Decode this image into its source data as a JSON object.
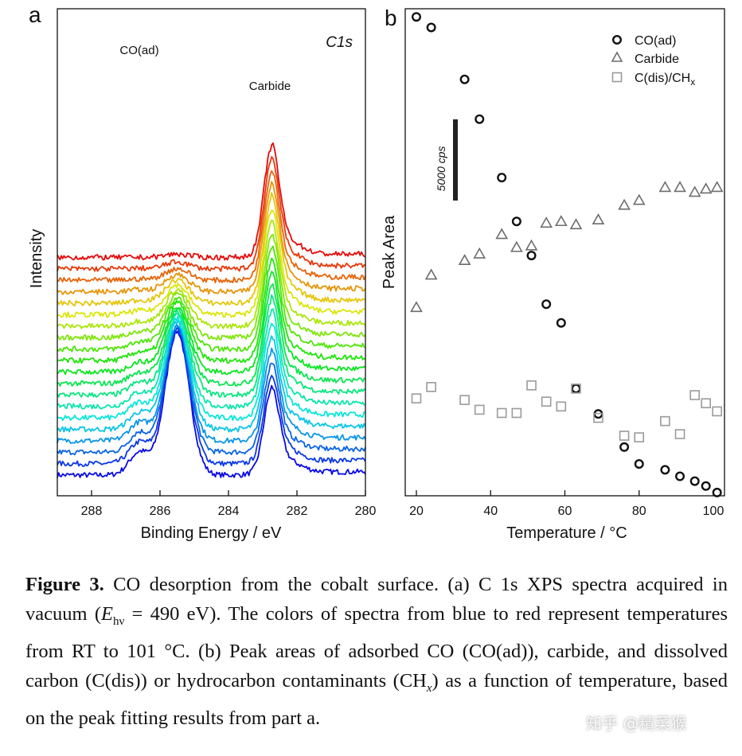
{
  "chart_data": [
    {
      "panel": "a",
      "type": "line",
      "xlabel": "Binding Energy / eV",
      "ylabel": "Intensity",
      "xlim": [
        289,
        280
      ],
      "x_ticks": [
        "288",
        "286",
        "284",
        "282",
        "280"
      ],
      "x_tick_values": [
        288,
        286,
        284,
        282,
        280
      ],
      "annotations": [
        "CO(ad)",
        "Carbide",
        "C1s"
      ],
      "series_count": 20,
      "color_order": "blue (RT, top) to red (101 °C, bottom)",
      "peaks": [
        {
          "label": "CO(ad)",
          "position_eV": 285.5,
          "height_top_spectrum": 2.2,
          "height_bottom_spectrum": 0.05
        },
        {
          "label": "Carbide",
          "position_eV": 282.75,
          "height_top_spectrum": 1.35,
          "height_bottom_spectrum": 1.75
        }
      ],
      "grid": false
    },
    {
      "panel": "b",
      "type": "scatter",
      "xlabel": "Temperature / °C",
      "ylabel": "Peak Area",
      "xlim": [
        17,
        103
      ],
      "x_ticks": [
        "20",
        "40",
        "60",
        "80",
        "100"
      ],
      "x_tick_values": [
        20,
        40,
        60,
        80,
        100
      ],
      "ylim": [
        0,
        30000
      ],
      "scale_bar_label": "5000 cps",
      "scale_bar_value": 5000,
      "legend_position": "top-right",
      "grid": false,
      "series": [
        {
          "name": "CO(ad)",
          "marker": "circle",
          "points": [
            [
              20,
              29500
            ],
            [
              24,
              28850
            ],
            [
              33,
              25650
            ],
            [
              37,
              23200
            ],
            [
              43,
              19600
            ],
            [
              47,
              16900
            ],
            [
              51,
              14800
            ],
            [
              55,
              11800
            ],
            [
              59,
              10650
            ],
            [
              63,
              6600
            ],
            [
              69,
              5040
            ],
            [
              76,
              3000
            ],
            [
              80,
              1960
            ],
            [
              87,
              1600
            ],
            [
              91,
              1200
            ],
            [
              95,
              900
            ],
            [
              98,
              600
            ],
            [
              101,
              200
            ]
          ]
        },
        {
          "name": "Carbide",
          "marker": "triangle",
          "points": [
            [
              20,
              11600
            ],
            [
              24,
              13600
            ],
            [
              33,
              14500
            ],
            [
              37,
              14900
            ],
            [
              43,
              16100
            ],
            [
              47,
              15300
            ],
            [
              51,
              15400
            ],
            [
              55,
              16800
            ],
            [
              59,
              16900
            ],
            [
              63,
              16700
            ],
            [
              69,
              17000
            ],
            [
              76,
              17900
            ],
            [
              80,
              18200
            ],
            [
              87,
              19000
            ],
            [
              91,
              19000
            ],
            [
              95,
              18700
            ],
            [
              98,
              18900
            ],
            [
              101,
              19000
            ]
          ]
        },
        {
          "name": "C(dis)/CH",
          "name_subscript": "x",
          "marker": "square",
          "points": [
            [
              20,
              6000
            ],
            [
              24,
              6700
            ],
            [
              33,
              5900
            ],
            [
              37,
              5300
            ],
            [
              43,
              5100
            ],
            [
              47,
              5100
            ],
            [
              51,
              6800
            ],
            [
              55,
              5800
            ],
            [
              59,
              5500
            ],
            [
              63,
              6600
            ],
            [
              69,
              4800
            ],
            [
              76,
              3700
            ],
            [
              80,
              3600
            ],
            [
              87,
              4600
            ],
            [
              91,
              3800
            ],
            [
              95,
              6200
            ],
            [
              98,
              5700
            ],
            [
              101,
              5200
            ]
          ]
        }
      ]
    }
  ],
  "panel_letters": {
    "a": "a",
    "b": "b"
  },
  "caption": {
    "label": "Figure 3.",
    "part1": " CO desorption from the cobalt surface. (a) C 1s XPS spectra acquired in vacuum (",
    "e_symbol": "E",
    "e_subscript": "hν",
    "part2": " = 490 eV). The colors of spectra from blue to red represent temperatures from RT to 101 °C. (b) Peak areas of adsorbed CO (CO(ad)), carbide, and dissolved carbon (C(dis)) or hydrocarbon contaminants (CH",
    "ch_subscript": "x",
    "part3": ") as a function of temperature, based on the peak fitting results from part a."
  },
  "watermark": "知乎 @精菜猴",
  "colors": {
    "co_marker": "#111111",
    "carbide_marker": "#6d6d6d",
    "cdis_marker": "#9a9a9a",
    "axis": "#111111"
  }
}
